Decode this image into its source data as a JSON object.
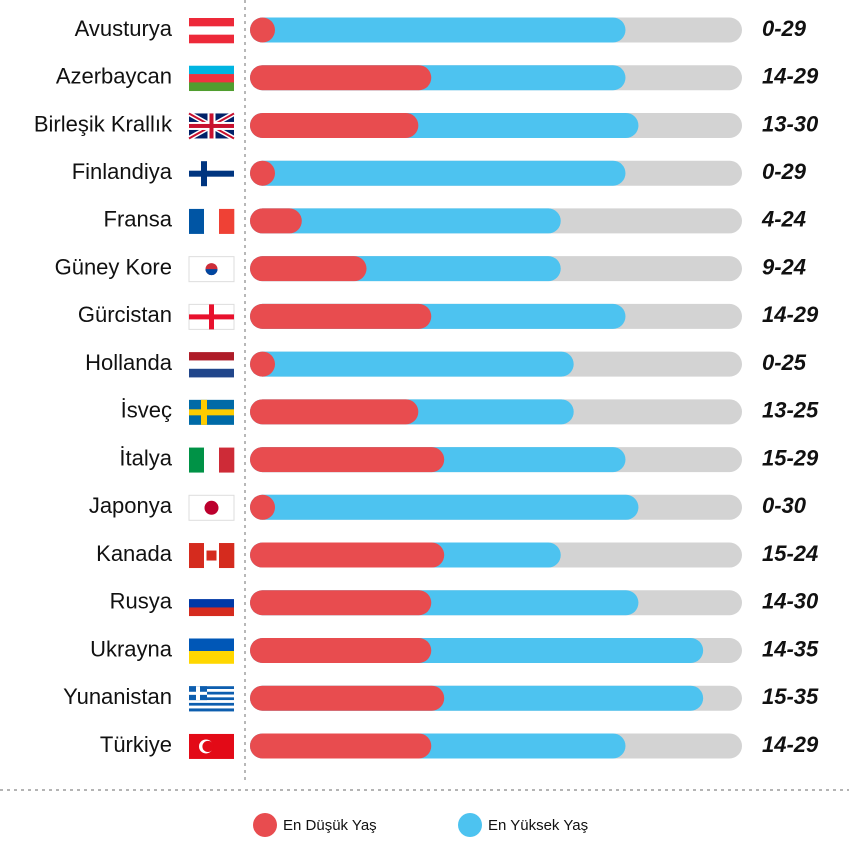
{
  "chart_data": {
    "type": "range-bar",
    "categories": [
      "Avusturya",
      "Azerbaycan",
      "Birleşik Krallık",
      "Finlandiya",
      "Fransa",
      "Güney Kore",
      "Gürcistan",
      "Hollanda",
      "İsveç",
      "İtalya",
      "Japonya",
      "Kanada",
      "Rusya",
      "Ukrayna",
      "Yunanistan",
      "Türkiye"
    ],
    "series": [
      {
        "name": "En Düşük Yaş",
        "color": "#e84c4f",
        "values": [
          0,
          14,
          13,
          0,
          4,
          9,
          14,
          0,
          13,
          15,
          0,
          15,
          14,
          14,
          15,
          14
        ]
      },
      {
        "name": "En Yüksek Yaş",
        "color": "#4dc3f0",
        "values": [
          29,
          29,
          30,
          29,
          24,
          24,
          29,
          25,
          25,
          29,
          30,
          24,
          30,
          35,
          35,
          29
        ]
      }
    ],
    "value_labels": [
      "0-29",
      "14-29",
      "13-30",
      "0-29",
      "4-24",
      "9-24",
      "14-29",
      "0-25",
      "13-25",
      "15-29",
      "0-30",
      "15-24",
      "14-30",
      "14-35",
      "15-35",
      "14-29"
    ],
    "xlim": [
      0,
      38
    ],
    "track_color": "#d3d3d3"
  }
}
